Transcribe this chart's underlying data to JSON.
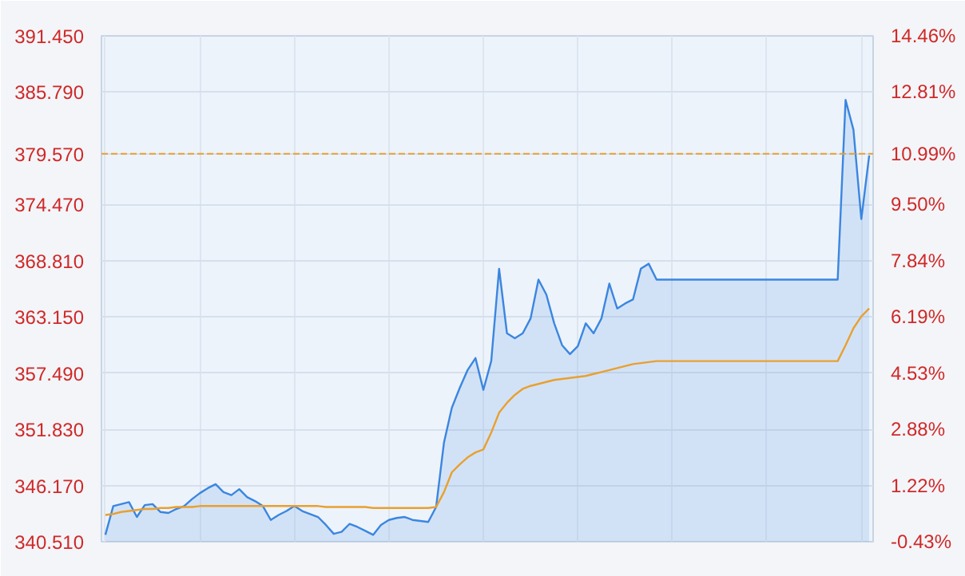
{
  "chart_data": {
    "type": "area",
    "categories": [
      null,
      null,
      null,
      null,
      null,
      null,
      null,
      null,
      null,
      null,
      null,
      null,
      null,
      null,
      null,
      null,
      null,
      null,
      null,
      null,
      null,
      null,
      null,
      null,
      null,
      null,
      null,
      null,
      null,
      null,
      null,
      null,
      null,
      null,
      null,
      null,
      null,
      null,
      null,
      null,
      null,
      null,
      null,
      null,
      null,
      null,
      null,
      null,
      null,
      null,
      null,
      null,
      null,
      null,
      null,
      null,
      null,
      null,
      null,
      null,
      null,
      null,
      null,
      null,
      null,
      null,
      null,
      null,
      null,
      null,
      null,
      null,
      null,
      null,
      null,
      null,
      null,
      null,
      null,
      null,
      null,
      null,
      null,
      null,
      null,
      null,
      null,
      null,
      null,
      null,
      null,
      null,
      null,
      null,
      null,
      null,
      null,
      null
    ],
    "series": [
      {
        "color": "#3a86e0",
        "values": [
          341.2,
          344.1,
          344.3,
          344.5,
          343.0,
          344.2,
          344.3,
          343.5,
          343.4,
          343.8,
          344.1,
          344.8,
          345.4,
          345.9,
          346.3,
          345.5,
          345.2,
          345.8,
          345.0,
          344.6,
          344.1,
          342.7,
          343.2,
          343.6,
          344.1,
          343.6,
          343.3,
          343.0,
          342.2,
          341.3,
          341.5,
          342.3,
          342.0,
          341.6,
          341.2,
          342.2,
          342.7,
          342.9,
          343.0,
          342.7,
          342.6,
          342.5,
          344.0,
          350.5,
          354.0,
          356.0,
          357.8,
          359.0,
          355.8,
          358.7,
          368.0,
          361.5,
          361.0,
          361.5,
          363.0,
          366.9,
          365.4,
          362.5,
          360.3,
          359.4,
          360.2,
          362.5,
          361.5,
          363.0,
          366.5,
          364.0,
          364.5,
          364.9,
          368.0,
          368.5,
          366.9,
          366.9,
          366.9,
          366.9,
          366.9,
          366.9,
          366.9,
          366.9,
          366.9,
          366.9,
          366.9,
          366.9,
          366.9,
          366.9,
          366.9,
          366.9,
          366.9,
          366.9,
          366.9,
          366.9,
          366.9,
          366.9,
          366.9,
          366.9,
          385.0,
          382.0,
          373.0,
          379.4
        ]
      },
      {
        "type": "line",
        "color": "#e8a030",
        "values": [
          343.2,
          343.3,
          343.5,
          343.6,
          343.7,
          343.8,
          343.8,
          343.9,
          343.9,
          344.0,
          344.0,
          344.0,
          344.1,
          344.1,
          344.1,
          344.1,
          344.1,
          344.1,
          344.1,
          344.1,
          344.1,
          344.1,
          344.1,
          344.1,
          344.1,
          344.1,
          344.1,
          344.1,
          344.0,
          344.0,
          344.0,
          344.0,
          344.0,
          344.0,
          343.9,
          343.9,
          343.9,
          343.9,
          343.9,
          343.9,
          343.9,
          343.9,
          344.0,
          345.5,
          347.5,
          348.3,
          349.0,
          349.5,
          349.8,
          351.5,
          353.5,
          354.5,
          355.3,
          355.9,
          356.2,
          356.4,
          356.6,
          356.8,
          356.9,
          357.0,
          357.1,
          357.2,
          357.4,
          357.6,
          357.8,
          358.0,
          358.2,
          358.4,
          358.5,
          358.6,
          358.7,
          358.7,
          358.7,
          358.7,
          358.7,
          358.7,
          358.7,
          358.7,
          358.7,
          358.7,
          358.7,
          358.7,
          358.7,
          358.7,
          358.7,
          358.7,
          358.7,
          358.7,
          358.7,
          358.7,
          358.7,
          358.7,
          358.7,
          358.7,
          360.3,
          362.0,
          363.2,
          364.0
        ]
      }
    ],
    "ylim": [
      340.51,
      391.45
    ],
    "yticks": [
      {
        "value": 340.51,
        "label": "340.510"
      },
      {
        "value": 346.17,
        "label": "346.170"
      },
      {
        "value": 351.83,
        "label": "351.830"
      },
      {
        "value": 357.49,
        "label": "357.490"
      },
      {
        "value": 363.15,
        "label": "363.150"
      },
      {
        "value": 368.81,
        "label": "368.810"
      },
      {
        "value": 374.47,
        "label": "374.470"
      },
      {
        "value": 379.57,
        "label": "379.570"
      },
      {
        "value": 385.79,
        "label": "385.790"
      },
      {
        "value": 391.45,
        "label": "391.450"
      }
    ],
    "y2lim": [
      -0.43,
      14.46
    ],
    "y2ticks": [
      {
        "value": -0.43,
        "label": "-0.43%"
      },
      {
        "value": 1.22,
        "label": "1.22%"
      },
      {
        "value": 2.88,
        "label": "2.88%"
      },
      {
        "value": 4.53,
        "label": "4.53%"
      },
      {
        "value": 6.19,
        "label": "6.19%"
      },
      {
        "value": 7.84,
        "label": "7.84%"
      },
      {
        "value": 9.5,
        "label": "9.50%"
      },
      {
        "value": 10.99,
        "label": "10.99%"
      },
      {
        "value": 12.81,
        "label": "12.81%"
      },
      {
        "value": 14.46,
        "label": "14.46%"
      }
    ],
    "ref_lines": [
      {
        "axis": "y",
        "value": 379.57,
        "color": "#e8a030",
        "line_style": "dashed"
      }
    ],
    "grid": true
  }
}
